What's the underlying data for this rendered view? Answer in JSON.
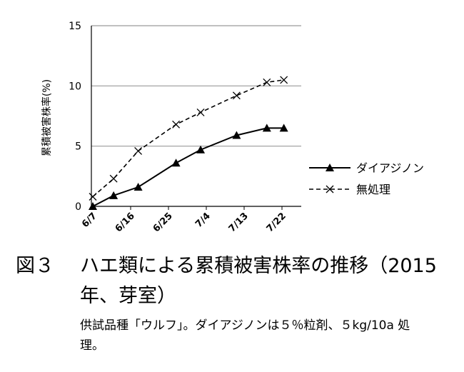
{
  "chart_data": {
    "type": "line",
    "x": [
      "6/7",
      "6/16",
      "6/25",
      "7/4",
      "7/13",
      "7/22"
    ],
    "ylim": [
      0,
      15
    ],
    "yticks": [
      0,
      5,
      10,
      15
    ],
    "ylabel": "累積被害株率(%)",
    "grid": true,
    "legend_position": "right",
    "series": [
      {
        "name": "ダイアジノン",
        "style": "solid",
        "marker": "triangle",
        "points": [
          [
            0,
            0.0
          ],
          [
            0.55,
            0.9
          ],
          [
            1.2,
            1.6
          ],
          [
            2.2,
            3.6
          ],
          [
            2.85,
            4.7
          ],
          [
            3.8,
            5.9
          ],
          [
            4.6,
            6.5
          ],
          [
            5.05,
            6.5
          ]
        ]
      },
      {
        "name": "無処理",
        "style": "dashed",
        "marker": "x",
        "points": [
          [
            0,
            0.8
          ],
          [
            0.55,
            2.3
          ],
          [
            1.2,
            4.6
          ],
          [
            2.2,
            6.8
          ],
          [
            2.85,
            7.8
          ],
          [
            3.8,
            9.2
          ],
          [
            4.6,
            10.3
          ],
          [
            5.05,
            10.5
          ]
        ]
      }
    ]
  },
  "caption": {
    "label": "図３",
    "title_line1": "ハエ類による累積被害株率の推移（2015",
    "title_line2": "年、芽室）",
    "note": "供試品種「ウルフ」。ダイアジノンは５％粒剤、５kg/10a 処理。"
  },
  "colors": {
    "grid": "#9a9a9a",
    "line": "#000000"
  }
}
